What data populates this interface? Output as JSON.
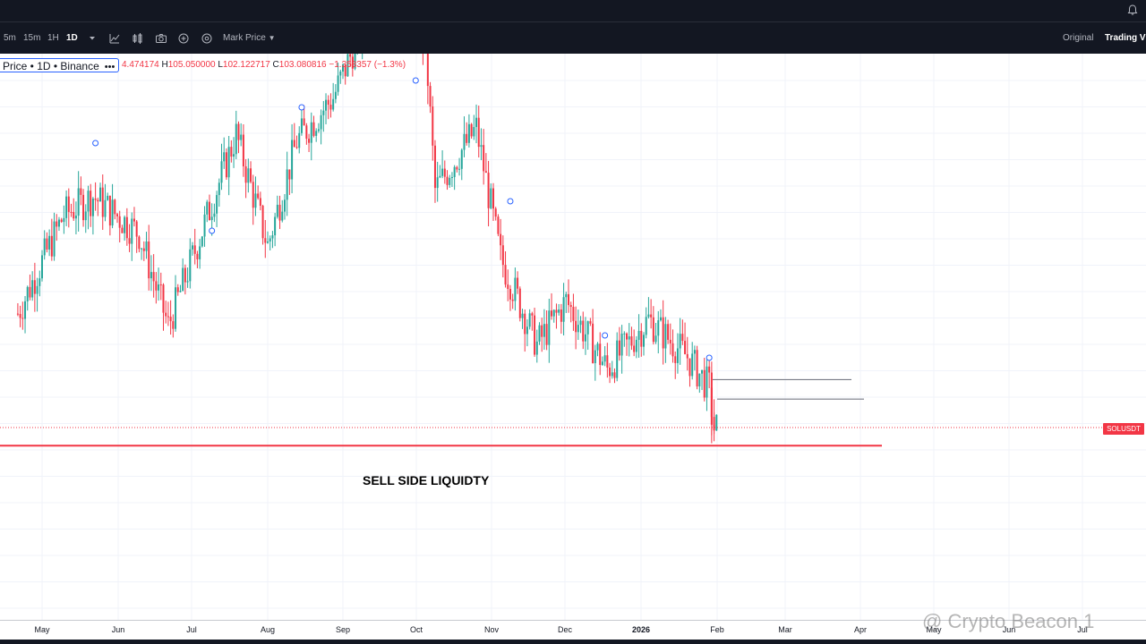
{
  "toolbar": {
    "timeframes": [
      "5m",
      "15m",
      "1H",
      "1D"
    ],
    "active_timeframe": "1D",
    "price_type": "Mark Price",
    "view_original": "Original",
    "view_tradingview": "Trading Vie"
  },
  "legend": {
    "title": "Price • 1D • Binance",
    "more": "•••",
    "open_tail": "4.474174",
    "high_label": "H",
    "high_value": "105.050000",
    "low_label": "L",
    "low_value": "102.122717",
    "close_label": "C",
    "close_value": "103.080816",
    "change": "−1.353357 (−1.3%)"
  },
  "symbol_badge": "SOLUSDT",
  "annotation": "SELL SIDE LIQUIDTY",
  "watermark": "@ Crypto Beacon 1",
  "colors": {
    "up": "#26a69a",
    "down": "#f23645",
    "liquidity_line": "#f23645",
    "level_lines": "#787b86"
  },
  "icons": [
    "chevron-down-icon",
    "indicators-icon",
    "compare-icon",
    "camera-icon",
    "replay-icon",
    "settings-icon",
    "bell-icon"
  ],
  "chart_data": {
    "type": "candlestick",
    "xaxis_labels": [
      "May",
      "Jun",
      "Jul",
      "Aug",
      "Sep",
      "Oct",
      "Nov",
      "Dec",
      "2026",
      "Feb",
      "Mar",
      "Apr",
      "May",
      "Jun",
      "Jul"
    ],
    "legend_placement": "top-left",
    "horizontal_levels": [
      {
        "role": "sell-side-liquidity",
        "price": 97.2,
        "color": "#f23645"
      },
      {
        "role": "level",
        "price": 118.6,
        "color": "#787b86"
      },
      {
        "role": "level",
        "price": 112.3,
        "color": "#787b86"
      }
    ],
    "approx_price_path": [
      {
        "date": "2025-04-21",
        "close": 140
      },
      {
        "date": "2025-05-10",
        "close": 172
      },
      {
        "date": "2025-05-22",
        "close": 178
      },
      {
        "date": "2025-06-10",
        "close": 166
      },
      {
        "date": "2025-06-22",
        "close": 136
      },
      {
        "date": "2025-07-20",
        "close": 198
      },
      {
        "date": "2025-08-02",
        "close": 162
      },
      {
        "date": "2025-08-14",
        "close": 196
      },
      {
        "date": "2025-08-29",
        "close": 210
      },
      {
        "date": "2025-09-18",
        "close": 248
      },
      {
        "date": "2025-10-06",
        "close": 228
      },
      {
        "date": "2025-10-10",
        "close": 180
      },
      {
        "date": "2025-10-27",
        "close": 200
      },
      {
        "date": "2025-11-06",
        "close": 158
      },
      {
        "date": "2025-11-21",
        "close": 130
      },
      {
        "date": "2025-12-03",
        "close": 144
      },
      {
        "date": "2025-12-20",
        "close": 122
      },
      {
        "date": "2026-01-06",
        "close": 138
      },
      {
        "date": "2026-01-22",
        "close": 126
      },
      {
        "date": "2026-01-31",
        "close": 116
      },
      {
        "date": "2026-02-02",
        "close": 103
      }
    ]
  }
}
